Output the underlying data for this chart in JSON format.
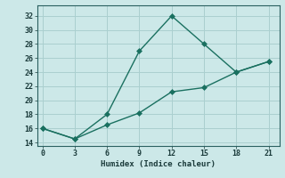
{
  "xlabel": "Humidex (Indice chaleur)",
  "bg_color": "#cce8e8",
  "grid_color": "#aacfcf",
  "line_color": "#1a7060",
  "line1_x": [
    0,
    3,
    6,
    9,
    12,
    15,
    18,
    21
  ],
  "line1_y": [
    16,
    14.5,
    18,
    27,
    32,
    28,
    24,
    25.5
  ],
  "line2_x": [
    0,
    3,
    6,
    9,
    12,
    15,
    18,
    21
  ],
  "line2_y": [
    16,
    14.5,
    16.5,
    18.2,
    21.2,
    21.8,
    24.0,
    25.5
  ],
  "xlim": [
    -0.5,
    22
  ],
  "ylim": [
    13.5,
    33.5
  ],
  "xticks": [
    0,
    3,
    6,
    9,
    12,
    15,
    18,
    21
  ],
  "yticks": [
    14,
    16,
    18,
    20,
    22,
    24,
    26,
    28,
    30,
    32
  ],
  "markersize": 3,
  "linewidth": 1.0
}
